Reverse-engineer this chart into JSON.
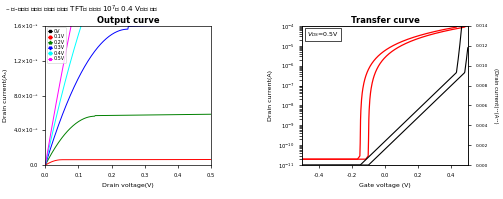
{
  "output_title": "Output curve",
  "transfer_title": "Transfer curve",
  "output_xlabel": "Drain voltage(V)",
  "output_ylabel": "Drain current(Aₛ)",
  "transfer_xlabel": "Gate voltage (V)",
  "transfer_ylabel_left": "Drain current(A)",
  "transfer_ylabel_right": "(Drain current)¹²(A¹²)",
  "vgs_labels": [
    "0V",
    "0.1V",
    "0.2V",
    "0.3V",
    "0.4V",
    "0.5V"
  ],
  "vgs_colors": [
    "black",
    "red",
    "green",
    "blue",
    "cyan",
    "magenta"
  ],
  "output_xlim": [
    0.0,
    0.5
  ],
  "output_ylim": [
    0.0,
    1.6e-05
  ],
  "transfer_xlim": [
    -0.5,
    0.5
  ],
  "transfer_ylim_log": [
    1e-11,
    0.0001
  ],
  "transfer_ylim_sqrt": [
    0.0,
    0.014
  ],
  "vds_annotation": "V_{DS}=0.5V"
}
